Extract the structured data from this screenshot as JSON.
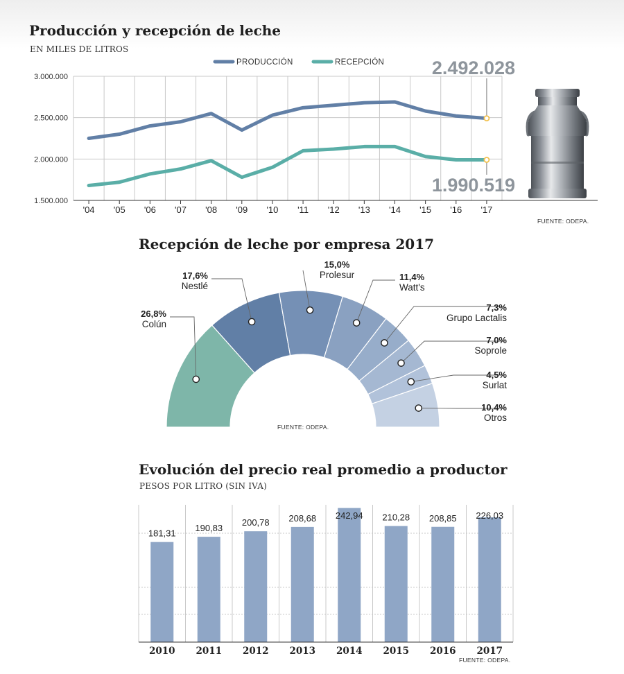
{
  "colors": {
    "produccion": "#617fa6",
    "recepcion": "#5aaea7",
    "grid": "#c8c8c8",
    "bar": "#8fa6c6",
    "bigNumber": "#8e959c",
    "marker": "#f2c14e"
  },
  "icons": {
    "milkCan": "milk-can-icon"
  },
  "charts": {
    "line": {
      "title": "Producción y recepción de leche",
      "subtitle": "EN MILES DE LITROS",
      "source": "FUENTE: ODEPA.",
      "produccion_callout": "2.492.028",
      "recepcion_callout": "1.990.519"
    },
    "donut": {
      "title": "Recepción de leche por empresa 2017",
      "source": "FUENTE: ODEPA."
    },
    "bars": {
      "title": "Evolución del precio real promedio a productor",
      "subtitle": "PESOS POR LITRO (SIN IVA)",
      "source": "FUENTE: ODEPA."
    }
  },
  "chart_data": [
    {
      "type": "line",
      "title": "Producción y recepción de leche",
      "subtitle": "EN MILES DE LITROS",
      "x": [
        "'04",
        "'05",
        "'06",
        "'07",
        "'08",
        "'09",
        "'10",
        "'11",
        "'12",
        "'13",
        "'14",
        "'15",
        "'16",
        "'17"
      ],
      "yticks": [
        "3.000.000",
        "2.500.000",
        "2.000.000",
        "1.500.000"
      ],
      "ylim": [
        1500000,
        3000000
      ],
      "grid": true,
      "legend": "top-center",
      "series": [
        {
          "name": "PRODUCCIÓN",
          "values": [
            2250000,
            2300000,
            2400000,
            2450000,
            2550000,
            2350000,
            2530000,
            2620000,
            2650000,
            2680000,
            2690000,
            2580000,
            2520000,
            2492028
          ]
        },
        {
          "name": "RECEPCIÓN",
          "values": [
            1680000,
            1720000,
            1820000,
            1880000,
            1980000,
            1780000,
            1900000,
            2100000,
            2120000,
            2150000,
            2150000,
            2030000,
            1990000,
            1990519
          ]
        }
      ],
      "annotations": [
        "2.492.028",
        "1.990.519"
      ]
    },
    {
      "type": "pie",
      "title": "Recepción de leche por empresa 2017",
      "slices": [
        {
          "label": "Colún",
          "value": 26.8,
          "text": "26,8%",
          "color": "#7eb6a9"
        },
        {
          "label": "Nestlé",
          "value": 17.6,
          "text": "17,6%",
          "color": "#617fa6"
        },
        {
          "label": "Prolesur",
          "value": 15.0,
          "text": "15,0%",
          "color": "#7590b5"
        },
        {
          "label": "Watt's",
          "value": 11.4,
          "text": "11,4%",
          "color": "#8aa1c1"
        },
        {
          "label": "Grupo Lactalis",
          "value": 7.3,
          "text": "7,3%",
          "color": "#97adca"
        },
        {
          "label": "Soprole",
          "value": 7.0,
          "text": "7,0%",
          "color": "#a5b8d2"
        },
        {
          "label": "Surlat",
          "value": 4.5,
          "text": "4,5%",
          "color": "#b1c2da"
        },
        {
          "label": "Otros",
          "value": 10.4,
          "text": "10,4%",
          "color": "#c4d1e3"
        }
      ]
    },
    {
      "type": "bar",
      "title": "Evolución del precio real promedio a productor",
      "subtitle": "PESOS POR LITRO (SIN IVA)",
      "categories": [
        "2010",
        "2011",
        "2012",
        "2013",
        "2014",
        "2015",
        "2016",
        "2017"
      ],
      "values": [
        181.31,
        190.83,
        200.78,
        208.68,
        242.94,
        210.28,
        208.85,
        226.03
      ],
      "labels": [
        "181,31",
        "190,83",
        "200,78",
        "208,68",
        "242,94",
        "210,28",
        "208,85",
        "226,03"
      ],
      "ylim": [
        0,
        250
      ],
      "grid": true
    }
  ]
}
